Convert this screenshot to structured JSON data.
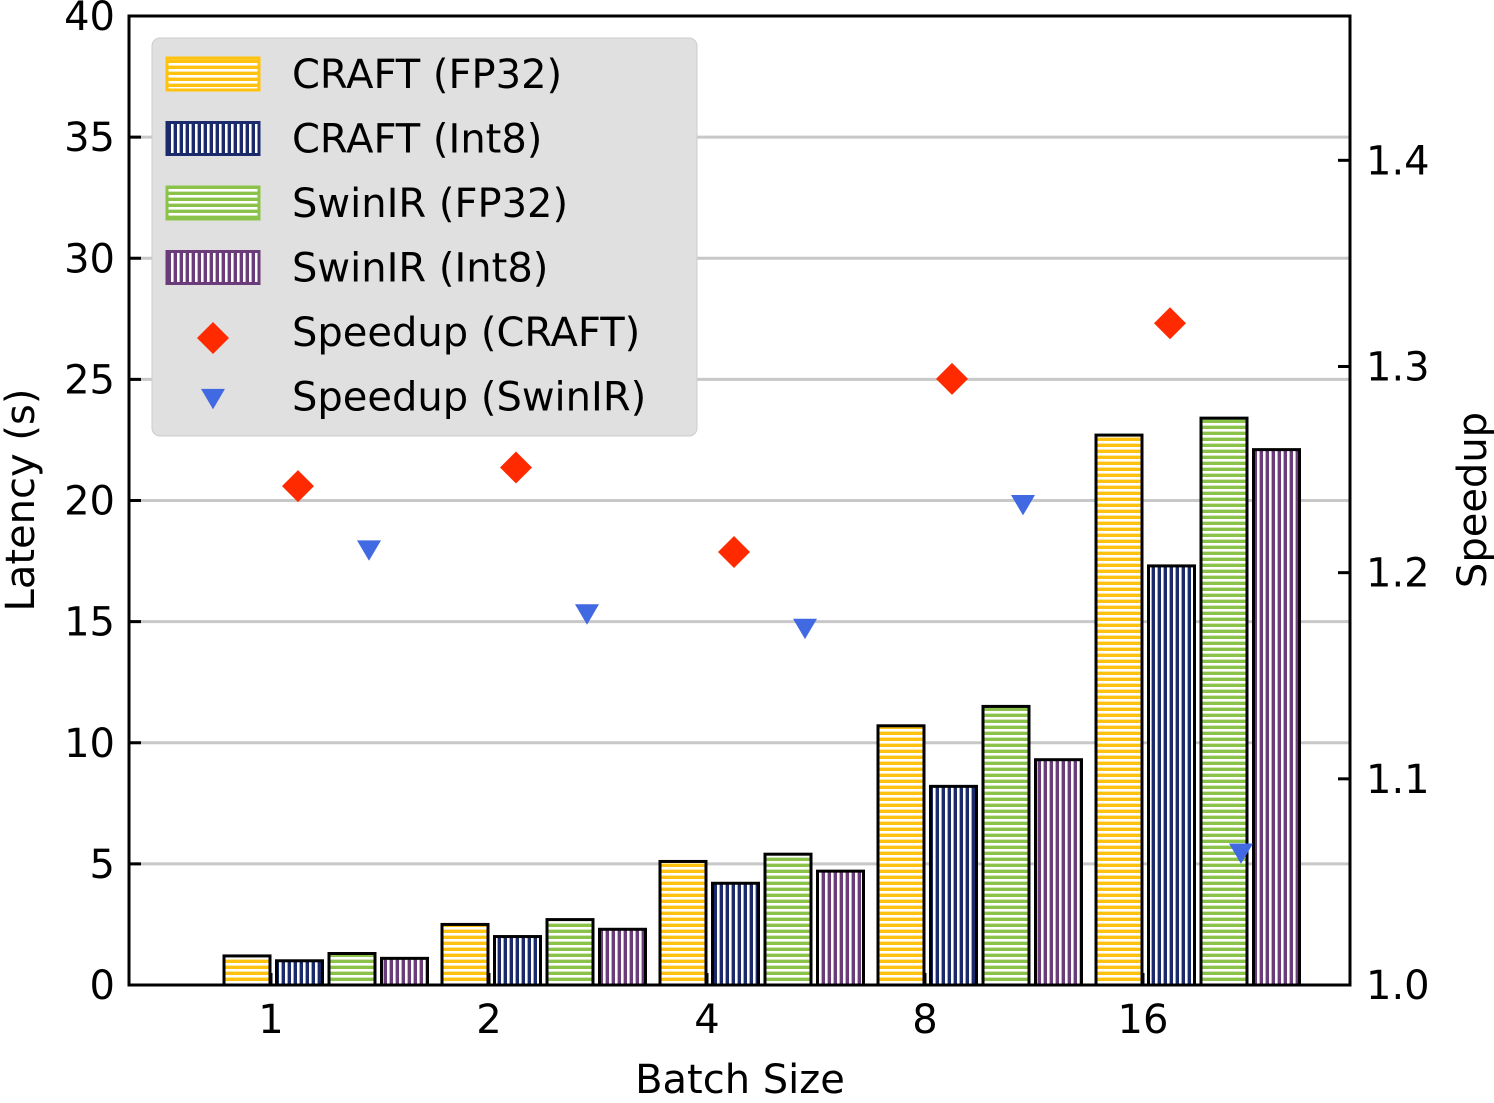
{
  "chart_data": {
    "type": "bar",
    "xlabel": "Batch Size",
    "ylabel": "Latency (s)",
    "y2label": "Speedup",
    "categories": [
      "1",
      "2",
      "4",
      "8",
      "16"
    ],
    "ylim": [
      0,
      40
    ],
    "yticks": [
      "0",
      "5",
      "10",
      "15",
      "20",
      "25",
      "30",
      "35",
      "40"
    ],
    "y2lim": [
      1.0,
      1.47
    ],
    "y2ticks": [
      "1.0",
      "1.1",
      "1.2",
      "1.3",
      "1.4"
    ],
    "grid": "horizontal",
    "legend_position": "top-left",
    "series": [
      {
        "name": "CRAFT (FP32)",
        "kind": "bar",
        "color": "#FFC20E",
        "pattern": "horizontal",
        "values": [
          1.2,
          2.5,
          5.1,
          10.7,
          22.7
        ]
      },
      {
        "name": "CRAFT (Int8)",
        "kind": "bar",
        "color": "#1B2A6B",
        "pattern": "vertical",
        "values": [
          1.0,
          2.0,
          4.2,
          8.2,
          17.3
        ]
      },
      {
        "name": "SwinIR (FP32)",
        "kind": "bar",
        "color": "#8BC34A",
        "pattern": "horizontal",
        "values": [
          1.3,
          2.7,
          5.4,
          11.5,
          23.4
        ]
      },
      {
        "name": "SwinIR (Int8)",
        "kind": "bar",
        "color": "#6A3D7A",
        "pattern": "vertical",
        "values": [
          1.1,
          2.3,
          4.7,
          9.3,
          22.1
        ]
      }
    ],
    "speedup_series": [
      {
        "name": "Speedup (CRAFT)",
        "marker": "diamond",
        "color": "#FF2A00",
        "values": [
          1.242,
          1.251,
          1.21,
          1.294,
          1.321
        ]
      },
      {
        "name": "Speedup (SwinIR)",
        "marker": "triangle-down",
        "color": "#4169E1",
        "values": [
          1.211,
          1.18,
          1.173,
          1.233,
          1.064
        ]
      }
    ]
  }
}
